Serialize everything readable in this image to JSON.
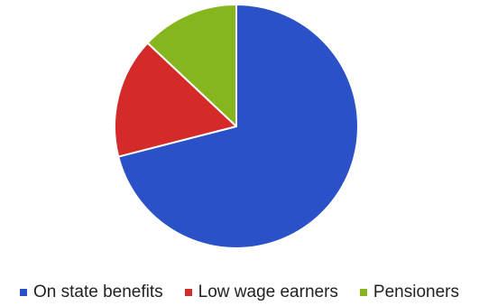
{
  "chart_data": {
    "type": "pie",
    "title": "",
    "start_angle_deg": 0,
    "direction": "clockwise",
    "legend_position": "bottom",
    "slices": [
      {
        "label": "On state benefits",
        "value": 71,
        "color": "#2b51c8"
      },
      {
        "label": "Low wage earners",
        "value": 16,
        "color": "#d42a2a"
      },
      {
        "label": "Pensioners",
        "value": 13,
        "color": "#86b61d"
      }
    ]
  }
}
